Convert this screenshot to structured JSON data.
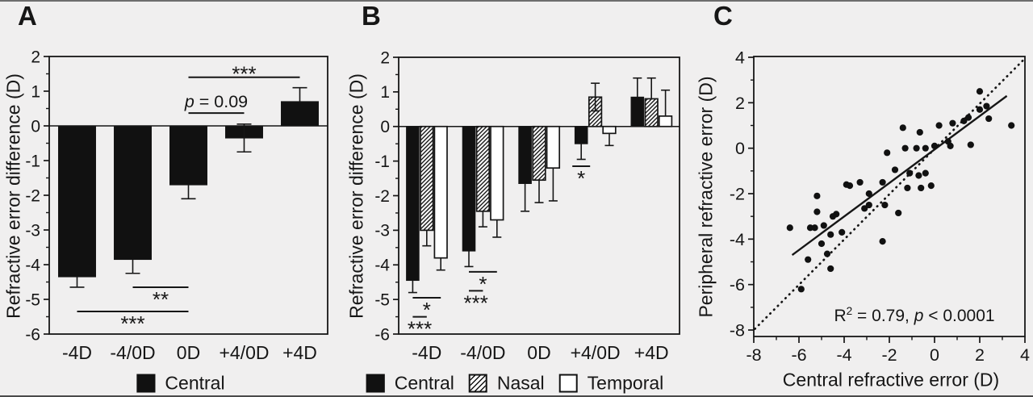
{
  "figure": {
    "background": "#f0efef",
    "ink": "#161616",
    "frame_color": "#5a5a5a"
  },
  "panels": {
    "a": {
      "letter": "A",
      "y_axis_label": "Refractive error difference (D)"
    },
    "b": {
      "letter": "B",
      "y_axis_label": "Refractive error difference (D)"
    },
    "c": {
      "letter": "C",
      "y_axis_label": "Peripheral refractive error (D)",
      "x_axis_label": "Central refractive error (D)",
      "annotation": {
        "r": "R",
        "exponent": "2",
        "equals": " = 0.79, ",
        "p": "p",
        "value": " < 0.0001"
      }
    }
  },
  "legends": {
    "a": [
      {
        "label": "Central",
        "swatch": "black"
      }
    ],
    "b": [
      {
        "label": "Central",
        "swatch": "black"
      },
      {
        "label": "Nasal",
        "swatch": "hatch"
      },
      {
        "label": "Temporal",
        "swatch": "white"
      }
    ]
  },
  "chart_data": [
    {
      "id": "A",
      "type": "bar",
      "ylabel": "Refractive error difference (D)",
      "categories": [
        "-4D",
        "-4/0D",
        "0D",
        "+4/0D",
        "+4D"
      ],
      "ylim": [
        -6,
        2
      ],
      "yticks": [
        2,
        1,
        0,
        -1,
        -2,
        -3,
        -4,
        -5,
        -6
      ],
      "series": [
        {
          "name": "Central",
          "fill": "black",
          "values": [
            -4.35,
            -3.85,
            -1.7,
            -0.35,
            0.7
          ],
          "errors": [
            0.3,
            0.4,
            0.4,
            0.4,
            0.4
          ]
        }
      ],
      "two_sided_errors": [
        [
          3,
          0
        ]
      ],
      "significance": [
        {
          "from_cat": 2,
          "to_cat": 4,
          "y": 1.4,
          "label": "***",
          "side": "above"
        },
        {
          "from_cat": 2,
          "to_cat": 3,
          "y": 0.37,
          "label": "p = 0.09",
          "side": "above",
          "italic_first": true
        },
        {
          "from_cat": 1,
          "to_cat": 2,
          "y": -4.65,
          "label": "**",
          "side": "below"
        },
        {
          "from_cat": 0,
          "to_cat": 2,
          "y": -5.35,
          "label": "***",
          "side": "below"
        }
      ]
    },
    {
      "id": "B",
      "type": "bar",
      "ylabel": "Refractive error difference (D)",
      "categories": [
        "-4D",
        "-4/0D",
        "0D",
        "+4/0D",
        "+4D"
      ],
      "ylim": [
        -6,
        2
      ],
      "yticks": [
        2,
        1,
        0,
        -1,
        -2,
        -3,
        -4,
        -5,
        -6
      ],
      "series": [
        {
          "name": "Central",
          "fill": "black",
          "values": [
            -4.45,
            -3.6,
            -1.65,
            -0.5,
            0.85
          ],
          "errors": [
            0.35,
            0.45,
            0.8,
            0.45,
            0.55
          ]
        },
        {
          "name": "Nasal",
          "fill": "hatch",
          "values": [
            -3.0,
            -2.45,
            -1.55,
            0.85,
            0.8
          ],
          "errors": [
            0.45,
            0.45,
            0.65,
            0.4,
            0.6
          ]
        },
        {
          "name": "Temporal",
          "fill": "white",
          "values": [
            -3.8,
            -2.7,
            -1.2,
            -0.2,
            0.3
          ],
          "errors": [
            0.35,
            0.5,
            0.95,
            0.35,
            0.75
          ]
        }
      ],
      "two_sided_errors": [
        [
          3,
          1
        ]
      ],
      "significance": [
        {
          "group": 0,
          "from_series": 0,
          "to_series": 2,
          "y": -4.95,
          "label": "*",
          "side": "below"
        },
        {
          "group": 0,
          "from_series": 0,
          "to_series": 1,
          "y": -5.5,
          "label": "***",
          "side": "below"
        },
        {
          "group": 1,
          "from_series": 0,
          "to_series": 2,
          "y": -4.2,
          "label": "*",
          "side": "below"
        },
        {
          "group": 1,
          "from_series": 0,
          "to_series": 1,
          "y": -4.75,
          "label": "***",
          "side": "below"
        },
        {
          "group": 3,
          "from_series": 0,
          "to_series": 0,
          "y": -1.15,
          "label": "*",
          "side": "below"
        }
      ]
    },
    {
      "id": "C",
      "type": "scatter",
      "xlabel": "Central refractive error (D)",
      "ylabel": "Peripheral refractive error (D)",
      "xlim": [
        -8,
        4
      ],
      "ylim": [
        -8,
        4
      ],
      "xticks": [
        -8,
        -6,
        -4,
        -2,
        0,
        2,
        4
      ],
      "yticks": [
        4,
        2,
        0,
        -2,
        -4,
        -6,
        -8
      ],
      "r_squared": 0.79,
      "p_value": "< 0.0001",
      "regression_line": {
        "x1": -6.3,
        "y1": -4.7,
        "x2": 3.2,
        "y2": 2.3
      },
      "identity_line": {
        "x1": -7.95,
        "y1": -7.95,
        "x2": 4,
        "y2": 3.95,
        "style": "dotted"
      },
      "points": [
        [
          -6.4,
          -3.5
        ],
        [
          -5.9,
          -6.2
        ],
        [
          -5.6,
          -4.9
        ],
        [
          -5.5,
          -3.5
        ],
        [
          -5.3,
          -3.5
        ],
        [
          -5.2,
          -2.8
        ],
        [
          -5.2,
          -2.1
        ],
        [
          -5.0,
          -4.2
        ],
        [
          -4.9,
          -3.4
        ],
        [
          -4.75,
          -4.65
        ],
        [
          -4.6,
          -5.3
        ],
        [
          -4.6,
          -3.8
        ],
        [
          -4.5,
          -3.0
        ],
        [
          -4.35,
          -2.9
        ],
        [
          -4.1,
          -3.7
        ],
        [
          -3.9,
          -1.6
        ],
        [
          -3.75,
          -1.65
        ],
        [
          -3.3,
          -1.5
        ],
        [
          -3.1,
          -2.65
        ],
        [
          -2.9,
          -2.0
        ],
        [
          -2.9,
          -2.5
        ],
        [
          -2.3,
          -1.5
        ],
        [
          -2.3,
          -4.1
        ],
        [
          -2.2,
          -2.5
        ],
        [
          -2.1,
          -0.2
        ],
        [
          -1.75,
          -0.95
        ],
        [
          -1.6,
          -2.85
        ],
        [
          -1.4,
          0.9
        ],
        [
          -1.3,
          0.0
        ],
        [
          -1.2,
          -1.75
        ],
        [
          -1.1,
          -1.1
        ],
        [
          -0.8,
          0.0
        ],
        [
          -0.7,
          -1.2
        ],
        [
          -0.65,
          0.7
        ],
        [
          -0.6,
          -1.75
        ],
        [
          -0.4,
          0.0
        ],
        [
          -0.4,
          -1.1
        ],
        [
          -0.15,
          -1.65
        ],
        [
          0.0,
          0.1
        ],
        [
          0.2,
          1.0
        ],
        [
          0.6,
          0.3
        ],
        [
          0.7,
          0.1
        ],
        [
          0.8,
          1.1
        ],
        [
          1.3,
          1.2
        ],
        [
          1.5,
          1.35
        ],
        [
          1.6,
          0.15
        ],
        [
          2.0,
          2.5
        ],
        [
          2.0,
          1.7
        ],
        [
          2.3,
          1.85
        ],
        [
          2.4,
          1.3
        ],
        [
          3.4,
          1.0
        ]
      ]
    }
  ]
}
